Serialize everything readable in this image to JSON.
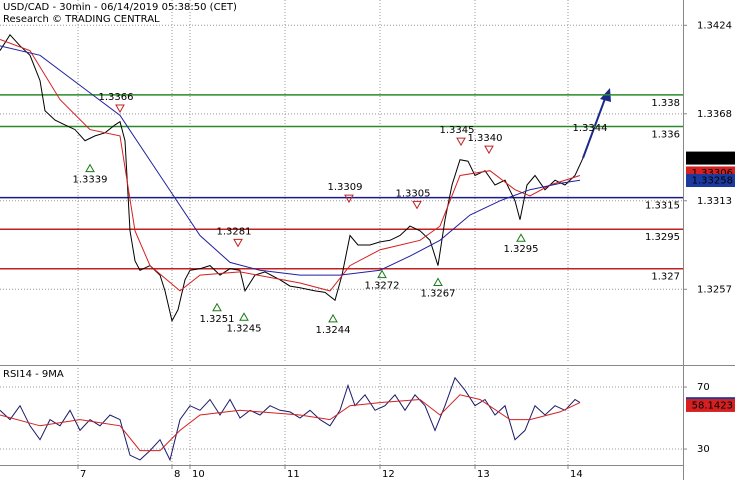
{
  "chart_data": [
    {
      "type": "line",
      "title": "USD/CAD - 30min - 06/14/2019 05:38:50 (CET)",
      "subtitle": "Research © TRADING CENTRAL",
      "xlim": [
        0,
        683
      ],
      "ylim": [
        1.3211,
        1.344
      ],
      "yticks": [
        1.3424,
        1.3368,
        1.3313,
        1.3257
      ],
      "grid": true,
      "series": [
        {
          "name": "USD/CAD",
          "color": "#000000",
          "x": [
            0,
            10,
            20,
            30,
            40,
            45,
            55,
            65,
            75,
            85,
            95,
            105,
            115,
            120,
            125,
            130,
            135,
            140,
            150,
            160,
            165,
            172,
            178,
            185,
            190,
            200,
            210,
            220,
            230,
            240,
            245,
            255,
            265,
            280,
            290,
            300,
            315,
            325,
            335,
            342,
            350,
            358,
            370,
            380,
            390,
            400,
            410,
            420,
            430,
            438,
            445,
            452,
            460,
            468,
            475,
            485,
            495,
            505,
            515,
            520,
            527,
            535,
            545,
            555,
            565,
            575,
            583
          ],
          "values": [
            1.3408,
            1.3418,
            1.3411,
            1.3405,
            1.3389,
            1.337,
            1.3364,
            1.3361,
            1.3358,
            1.3351,
            1.3354,
            1.3356,
            1.3361,
            1.3363,
            1.3351,
            1.3294,
            1.3275,
            1.3269,
            1.3272,
            1.3266,
            1.3256,
            1.3237,
            1.3244,
            1.3263,
            1.3269,
            1.327,
            1.3272,
            1.3266,
            1.327,
            1.3269,
            1.3256,
            1.3266,
            1.3268,
            1.3263,
            1.3259,
            1.3258,
            1.3256,
            1.3255,
            1.325,
            1.3266,
            1.3291,
            1.3285,
            1.3285,
            1.3287,
            1.3288,
            1.3291,
            1.3297,
            1.3294,
            1.3288,
            1.3272,
            1.3301,
            1.3323,
            1.3339,
            1.3338,
            1.3329,
            1.3332,
            1.3323,
            1.3326,
            1.3313,
            1.3301,
            1.3323,
            1.3329,
            1.332,
            1.3326,
            1.3323,
            1.3329,
            1.334
          ]
        },
        {
          "name": "MA fast",
          "color": "#d42020",
          "x": [
            0,
            30,
            60,
            90,
            120,
            135,
            150,
            180,
            200,
            240,
            300,
            330,
            350,
            380,
            420,
            440,
            460,
            490,
            515,
            530,
            550,
            580
          ],
          "values": [
            1.3415,
            1.3408,
            1.3377,
            1.3358,
            1.3354,
            1.3294,
            1.3272,
            1.3256,
            1.3266,
            1.3268,
            1.3261,
            1.3256,
            1.3272,
            1.3282,
            1.3288,
            1.3297,
            1.3329,
            1.3332,
            1.332,
            1.3316,
            1.3323,
            1.3329
          ]
        },
        {
          "name": "MA slow",
          "color": "#2020a0",
          "x": [
            0,
            40,
            80,
            120,
            160,
            200,
            230,
            260,
            300,
            340,
            380,
            410,
            440,
            470,
            500,
            530,
            560,
            580
          ],
          "values": [
            1.3411,
            1.3405,
            1.3386,
            1.3367,
            1.3329,
            1.3291,
            1.3274,
            1.3269,
            1.3266,
            1.3266,
            1.3269,
            1.3278,
            1.3288,
            1.3304,
            1.3313,
            1.332,
            1.3324,
            1.3326
          ]
        }
      ],
      "levels": [
        {
          "value": 1.338,
          "color": "#2a8a2a"
        },
        {
          "value": 1.336,
          "color": "#2a8a2a"
        },
        {
          "value": 1.3315,
          "color": "#1a1a8a"
        },
        {
          "value": 1.3295,
          "color": "#c02020"
        },
        {
          "value": 1.327,
          "color": "#c02020"
        }
      ],
      "annotations": [
        {
          "text": "1.3366",
          "x": 120,
          "y": 1.3366,
          "marker": "down"
        },
        {
          "text": "1.3339",
          "x": 90,
          "y": 1.3339,
          "marker": "up"
        },
        {
          "text": "1.3281",
          "x": 238,
          "y": 1.3281,
          "marker": "down"
        },
        {
          "text": "1.3251",
          "x": 217,
          "y": 1.3251,
          "marker": "up"
        },
        {
          "text": "1.3245",
          "x": 244,
          "y": 1.3245,
          "marker": "up"
        },
        {
          "text": "1.3309",
          "x": 349,
          "y": 1.3309,
          "marker": "down"
        },
        {
          "text": "1.3272",
          "x": 382,
          "y": 1.3272,
          "marker": "up"
        },
        {
          "text": "1.3305",
          "x": 417,
          "y": 1.3305,
          "marker": "down"
        },
        {
          "text": "1.3267",
          "x": 438,
          "y": 1.3267,
          "marker": "up"
        },
        {
          "text": "1.3244",
          "x": 333,
          "y": 1.3244,
          "marker": "up"
        },
        {
          "text": "1.3345",
          "x": 461,
          "y": 1.3345,
          "marker": "down"
        },
        {
          "text": "1.3340",
          "x": 489,
          "y": 1.334,
          "marker": "down"
        },
        {
          "text": "1.3295",
          "x": 521,
          "y": 1.3295,
          "marker": "up"
        },
        {
          "text": "1.3344",
          "x": 590,
          "y": 1.3344,
          "marker": "none"
        }
      ],
      "price_tags": [
        {
          "value": 1.334,
          "color": "#000000"
        },
        {
          "value": 1.33306,
          "color": "#d42020"
        },
        {
          "value": 1.33258,
          "color": "#1a3aa0"
        }
      ]
    },
    {
      "type": "line",
      "title": "RSI14 - 9MA",
      "xlim": [
        0,
        683
      ],
      "ylim": [
        19.7,
        82.3
      ],
      "yticks": [
        70,
        30
      ],
      "xticks": [
        {
          "value": 78,
          "label": "7"
        },
        {
          "value": 172,
          "label": "8"
        },
        {
          "value": 190,
          "label": "10"
        },
        {
          "value": 285,
          "label": "11"
        },
        {
          "value": 380,
          "label": "12"
        },
        {
          "value": 475,
          "label": "13"
        },
        {
          "value": 568,
          "label": "14"
        }
      ],
      "grid": true,
      "series": [
        {
          "name": "RSI14",
          "color": "#1a1a6a",
          "x": [
            0,
            10,
            20,
            30,
            40,
            50,
            60,
            70,
            80,
            90,
            100,
            110,
            120,
            130,
            140,
            150,
            160,
            170,
            180,
            190,
            200,
            210,
            220,
            230,
            240,
            250,
            260,
            270,
            280,
            290,
            300,
            310,
            320,
            330,
            340,
            348,
            355,
            365,
            375,
            385,
            395,
            405,
            415,
            425,
            435,
            445,
            455,
            465,
            475,
            485,
            495,
            505,
            515,
            525,
            535,
            545,
            555,
            565,
            575,
            580
          ],
          "values": [
            55,
            49,
            58,
            45,
            36,
            49,
            45,
            55,
            42,
            49,
            45,
            52,
            49,
            26,
            23,
            29,
            36,
            23,
            49,
            58,
            55,
            62,
            52,
            62,
            50,
            55,
            52,
            58,
            55,
            54,
            50,
            55,
            49,
            45,
            55,
            71,
            58,
            65,
            55,
            58,
            65,
            55,
            65,
            58,
            42,
            58,
            76,
            68,
            58,
            62,
            52,
            58,
            36,
            42,
            58,
            52,
            58,
            55,
            62,
            60
          ]
        },
        {
          "name": "9MA",
          "color": "#d42020",
          "x": [
            0,
            40,
            80,
            120,
            140,
            160,
            180,
            200,
            240,
            300,
            330,
            350,
            380,
            420,
            440,
            460,
            480,
            510,
            530,
            560,
            580
          ],
          "values": [
            52,
            45,
            49,
            45,
            29,
            29,
            42,
            52,
            55,
            52,
            49,
            58,
            60,
            62,
            52,
            65,
            62,
            49,
            49,
            54,
            60
          ]
        }
      ],
      "price_tags": [
        {
          "value": 59.2763,
          "color": "#1a3aa0"
        },
        {
          "value": 58.1423,
          "color": "#d42020"
        }
      ]
    }
  ]
}
